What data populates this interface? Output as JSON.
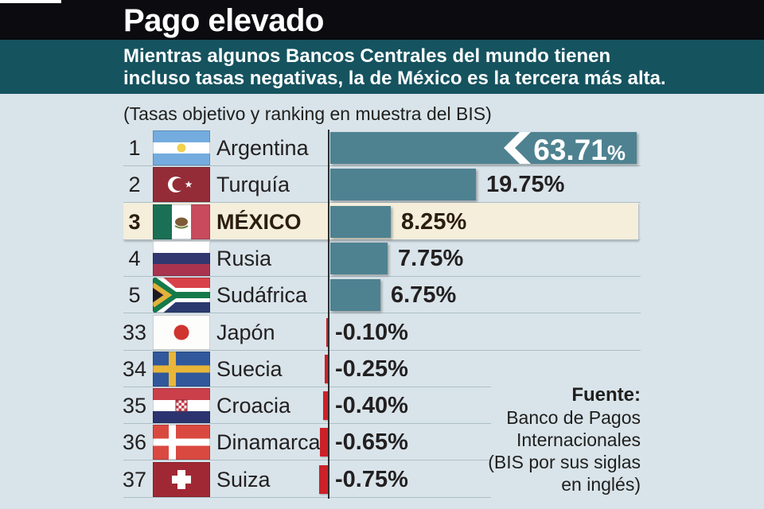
{
  "header": {
    "title": "Pago elevado",
    "subtitle_lines": [
      "Mientras algunos Bancos Centrales del mundo tienen",
      "incluso tasas negativas, la de México es la tercera más alta."
    ]
  },
  "note": "(Tasas objetivo y ranking en muestra del BIS)",
  "source": {
    "label": "Fuente:",
    "lines": [
      "Banco de Pagos",
      "Internacionales",
      "(BIS por sus siglas",
      "en inglés)"
    ]
  },
  "colors": {
    "bg": "#d9e4ea",
    "header_black": "#0b0b10",
    "header_teal": "#15535f",
    "bar_teal": "#4e8291",
    "bar_red": "#cb2128",
    "highlight": "#f4eedb",
    "separator": "#adbec7",
    "axis": "#2f2d2e",
    "text_dark": "#232021"
  },
  "chart_data": {
    "type": "bar",
    "orientation": "horizontal",
    "title": "Pago elevado",
    "note": "(Tasas objetivo y ranking en muestra del BIS)",
    "unit": "%",
    "axis_break_on_first_bar": true,
    "rows": [
      {
        "rank": "1",
        "country": "Argentina",
        "value": 63.71,
        "label": "63.71%",
        "flag": "argentina",
        "broken": true,
        "highlight": false
      },
      {
        "rank": "2",
        "country": "Turquía",
        "value": 19.75,
        "label": "19.75%",
        "flag": "turkey",
        "broken": false,
        "highlight": false
      },
      {
        "rank": "3",
        "country": "MÉXICO",
        "value": 8.25,
        "label": "8.25%",
        "flag": "mexico",
        "broken": false,
        "highlight": true
      },
      {
        "rank": "4",
        "country": "Rusia",
        "value": 7.75,
        "label": "7.75%",
        "flag": "russia",
        "broken": false,
        "highlight": false
      },
      {
        "rank": "5",
        "country": "Sudáfrica",
        "value": 6.75,
        "label": "6.75%",
        "flag": "south-africa",
        "broken": false,
        "highlight": false
      },
      {
        "rank": "33",
        "country": "Japón",
        "value": -0.1,
        "label": "-0.10%",
        "flag": "japan",
        "broken": false,
        "highlight": false
      },
      {
        "rank": "34",
        "country": "Suecia",
        "value": -0.25,
        "label": "-0.25%",
        "flag": "sweden",
        "broken": false,
        "highlight": false
      },
      {
        "rank": "35",
        "country": "Croacia",
        "value": -0.4,
        "label": "-0.40%",
        "flag": "croatia",
        "broken": false,
        "highlight": false
      },
      {
        "rank": "36",
        "country": "Dinamarca",
        "value": -0.65,
        "label": "-0.65%",
        "flag": "denmark",
        "broken": false,
        "highlight": false
      },
      {
        "rank": "37",
        "country": "Suiza",
        "value": -0.75,
        "label": "-0.75%",
        "flag": "switzerland",
        "broken": false,
        "highlight": false
      }
    ]
  }
}
